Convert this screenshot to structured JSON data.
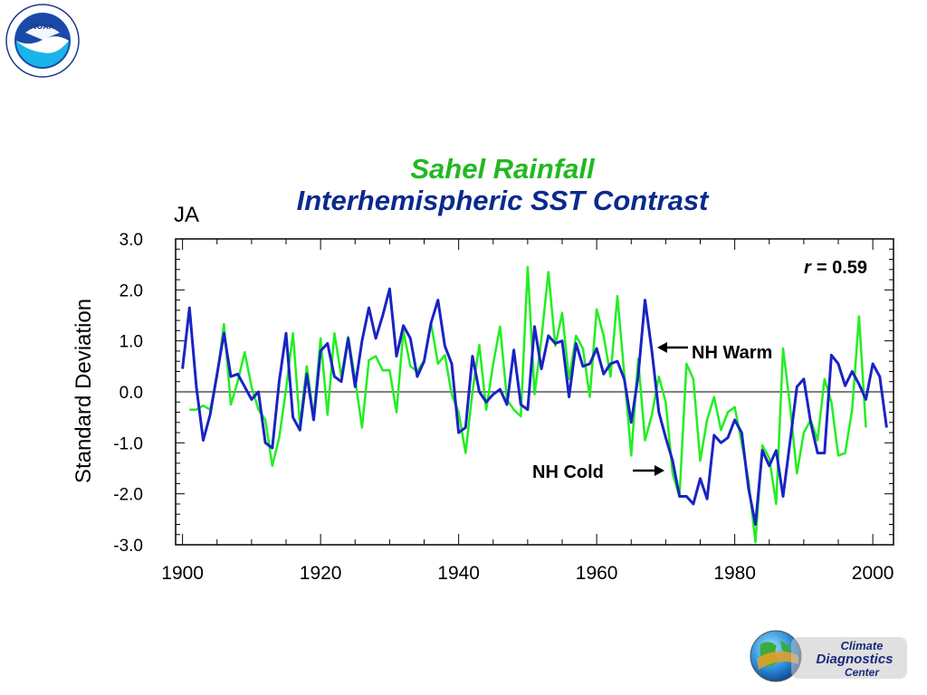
{
  "title_line1": "Sahel Rainfall",
  "title_line2": "Interhemispheric SST Contrast",
  "season_label": "JA",
  "ylabel": "Standard Deviation",
  "r_label": "r",
  "r_value": "= 0.59",
  "annotation_warm": "NH Warm",
  "annotation_cold": "NH Cold",
  "noaa_logo_text": "NOAA",
  "cdc_logo": {
    "line1": "Climate",
    "line2": "Diagnostics",
    "line3": "Center"
  },
  "colors": {
    "rainfall": "#22ee22",
    "sst_contrast": "#1a23c4",
    "title_green": "#22b822",
    "title_blue": "#0a2a8c"
  },
  "chart_data": {
    "type": "line",
    "xlim": [
      1899,
      2003
    ],
    "ylim": [
      -3,
      3
    ],
    "x_ticks": [
      "1900",
      "1920",
      "1940",
      "1960",
      "1980",
      "2000"
    ],
    "y_ticks": [
      "3.0",
      "2.0",
      "1.0",
      "0.0",
      "-1.0",
      "-2.0",
      "-3.0"
    ],
    "ylabel": "Standard Deviation",
    "zero_line": true,
    "series": [
      {
        "key": "rainfall",
        "color": "#22ee22",
        "x_start": 1901,
        "values": [
          -0.35,
          -0.35,
          -0.27,
          -0.35,
          0.3,
          1.33,
          -0.25,
          0.2,
          0.78,
          0.1,
          -0.35,
          -0.55,
          -1.45,
          -0.9,
          0.05,
          1.15,
          -0.65,
          0.5,
          -0.5,
          1.05,
          -0.45,
          1.15,
          0.3,
          1.08,
          0.25,
          -0.7,
          0.62,
          0.7,
          0.42,
          0.42,
          -0.4,
          1.2,
          0.5,
          0.4,
          0.62,
          1.35,
          0.55,
          0.72,
          -0.05,
          -0.4,
          -1.2,
          0.0,
          0.92,
          -0.35,
          0.55,
          1.28,
          -0.15,
          -0.35,
          -0.48,
          2.45,
          -0.05,
          1.05,
          2.35,
          0.9,
          1.55,
          0.25,
          1.1,
          0.85,
          -0.1,
          1.62,
          1.1,
          0.3,
          1.88,
          0.35,
          -1.25,
          0.65,
          -0.95,
          -0.45,
          0.3,
          -0.2,
          -1.6,
          -2.05,
          0.55,
          0.25,
          -1.35,
          -0.55,
          -0.1,
          -0.75,
          -0.4,
          -0.3,
          -1.0,
          -1.75,
          -2.95,
          -1.05,
          -1.3,
          -2.2,
          0.85,
          -0.25,
          -1.6,
          -0.8,
          -0.55,
          -0.95,
          0.25,
          -0.2,
          -1.25,
          -1.2,
          -0.35,
          1.48,
          -0.7
        ]
      },
      {
        "key": "sst_contrast",
        "color": "#1a23c4",
        "x_start": 1900,
        "values": [
          0.45,
          1.65,
          0.1,
          -0.95,
          -0.45,
          0.35,
          1.15,
          0.3,
          0.35,
          0.1,
          -0.15,
          0.0,
          -1.0,
          -1.1,
          0.2,
          1.15,
          -0.5,
          -0.75,
          0.35,
          -0.55,
          0.8,
          0.95,
          0.3,
          0.2,
          1.05,
          0.1,
          1.0,
          1.65,
          1.05,
          1.5,
          2.02,
          0.7,
          1.3,
          1.05,
          0.3,
          0.6,
          1.35,
          1.8,
          0.9,
          0.55,
          -0.8,
          -0.7,
          0.7,
          0.0,
          -0.2,
          -0.05,
          0.05,
          -0.25,
          0.82,
          -0.25,
          -0.35,
          1.28,
          0.45,
          1.1,
          0.95,
          1.0,
          -0.1,
          0.95,
          0.5,
          0.55,
          0.85,
          0.35,
          0.55,
          0.6,
          0.25,
          -0.6,
          0.3,
          1.8,
          0.8,
          -0.4,
          -0.9,
          -1.35,
          -2.05,
          -2.05,
          -2.2,
          -1.7,
          -2.1,
          -0.85,
          -1.0,
          -0.9,
          -0.55,
          -0.8,
          -1.9,
          -2.6,
          -1.15,
          -1.45,
          -1.15,
          -2.05,
          -1.0,
          0.1,
          0.25,
          -0.6,
          -1.2,
          -1.2,
          0.72,
          0.55,
          0.12,
          0.4,
          0.15,
          -0.15,
          0.55,
          0.3,
          -0.7
        ]
      }
    ]
  }
}
